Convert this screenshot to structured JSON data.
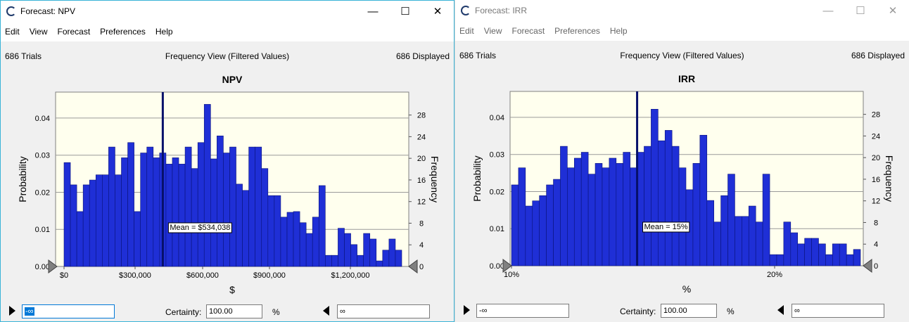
{
  "windows": [
    {
      "id": "npv",
      "title": "Forecast: NPV",
      "menu": [
        "Edit",
        "View",
        "Forecast",
        "Preferences",
        "Help"
      ],
      "trials": "686 Trials",
      "view_label": "Frequency View (Filtered Values)",
      "displayed": "686 Displayed",
      "certainty_label": "Certainty:",
      "certainty_value": "100.00",
      "percent": "%",
      "left_bound": "-∞",
      "right_bound": "∞",
      "chart_data": {
        "type": "bar",
        "title": "NPV",
        "xlabel": "$",
        "ylabel": "Probability",
        "ylabel_right": "Frequency",
        "x_ticks": [
          "$0",
          "$300,000",
          "$600,000",
          "$900,000",
          "$1,200,000"
        ],
        "y_ticks": [
          "0.00",
          "0.01",
          "0.02",
          "0.03",
          "0.04"
        ],
        "y2_ticks": [
          "0",
          "4",
          "8",
          "12",
          "16",
          "20",
          "24",
          "28"
        ],
        "mean_label": "Mean = $534,038",
        "mean_index": 15.5,
        "values": [
          0.028,
          0.022,
          0.0148,
          0.022,
          0.0233,
          0.0247,
          0.0247,
          0.0322,
          0.0247,
          0.0293,
          0.0334,
          0.0148,
          0.0306,
          0.0322,
          0.0293,
          0.0306,
          0.0276,
          0.0293,
          0.0276,
          0.0322,
          0.0264,
          0.0334,
          0.0437,
          0.029,
          0.0352,
          0.0306,
          0.0322,
          0.0222,
          0.0205,
          0.0322,
          0.0322,
          0.0264,
          0.0191,
          0.0191,
          0.0133,
          0.0146,
          0.0148,
          0.0118,
          0.0089,
          0.0133,
          0.0218,
          0.003,
          0.003,
          0.0103,
          0.0089,
          0.0059,
          0.003,
          0.0089,
          0.0074,
          0.0015,
          0.0044,
          0.0074,
          0.0044
        ],
        "ylim": [
          0,
          0.047
        ]
      }
    },
    {
      "id": "irr",
      "title": "Forecast: IRR",
      "menu": [
        "Edit",
        "View",
        "Forecast",
        "Preferences",
        "Help"
      ],
      "trials": "686 Trials",
      "view_label": "Frequency View (Filtered Values)",
      "displayed": "686 Displayed",
      "certainty_label": "Certainty:",
      "certainty_value": "100.00",
      "percent": "%",
      "left_bound": "-∞",
      "right_bound": "∞",
      "chart_data": {
        "type": "bar",
        "title": "IRR",
        "xlabel": "%",
        "ylabel": "Probability",
        "ylabel_right": "Frequency",
        "x_ticks": [
          "10%",
          "20%"
        ],
        "y_ticks": [
          "0.00",
          "0.01",
          "0.02",
          "0.03",
          "0.04"
        ],
        "y2_ticks": [
          "0",
          "4",
          "8",
          "12",
          "16",
          "20",
          "24",
          "28"
        ],
        "mean_label": "Mean = 15%",
        "mean_index": 18,
        "values": [
          0.0218,
          0.0264,
          0.0161,
          0.0175,
          0.0189,
          0.0218,
          0.0233,
          0.0322,
          0.0264,
          0.029,
          0.0306,
          0.0247,
          0.0276,
          0.0264,
          0.029,
          0.0276,
          0.0306,
          0.0264,
          0.0306,
          0.0322,
          0.0422,
          0.0337,
          0.0365,
          0.0322,
          0.0264,
          0.0205,
          0.0276,
          0.0352,
          0.0176,
          0.0118,
          0.0189,
          0.0247,
          0.0133,
          0.0133,
          0.0161,
          0.0118,
          0.0247,
          0.003,
          0.003,
          0.0118,
          0.0089,
          0.0059,
          0.0074,
          0.0074,
          0.0059,
          0.003,
          0.0059,
          0.0059,
          0.003,
          0.0044
        ],
        "ylim": [
          0,
          0.047
        ]
      }
    }
  ]
}
